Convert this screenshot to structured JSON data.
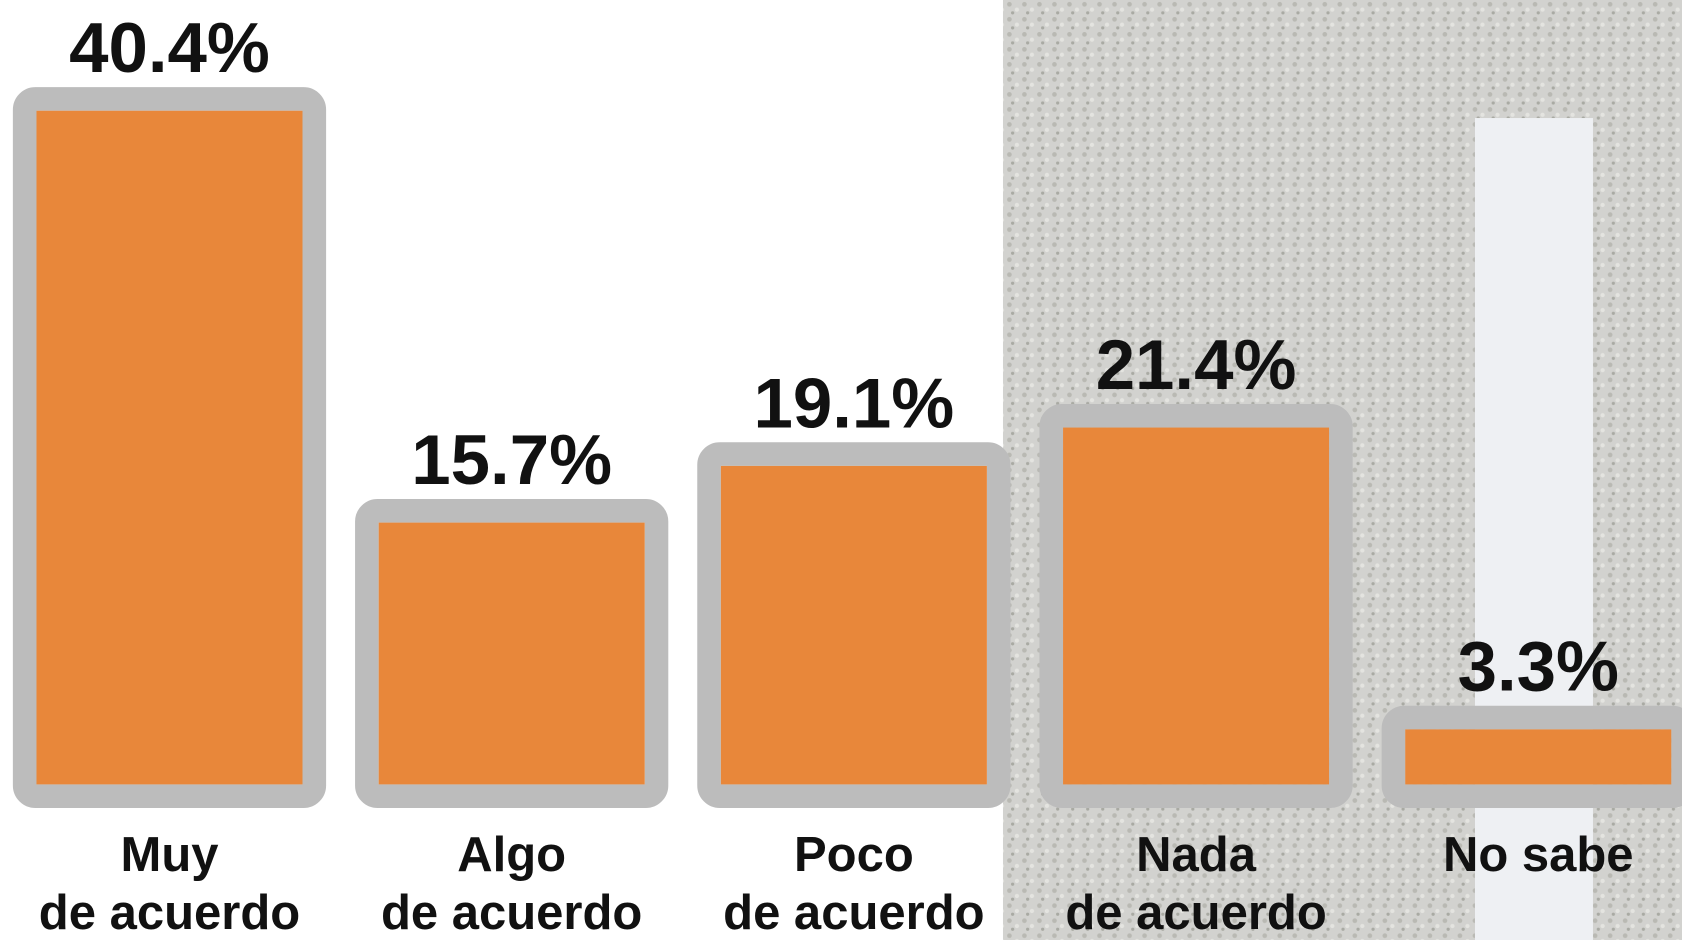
{
  "chart_data": {
    "type": "bar",
    "categories": [
      "Muy\nde acuerdo",
      "Algo\nde acuerdo",
      "Poco\nde acuerdo",
      "Nada\nde acuerdo",
      "No sabe"
    ],
    "values": [
      40.4,
      15.7,
      19.1,
      21.4,
      3.3
    ],
    "value_labels": [
      "40.4%",
      "15.7%",
      "19.1%",
      "21.4%",
      "3.3%"
    ],
    "color": "#e8873a"
  }
}
